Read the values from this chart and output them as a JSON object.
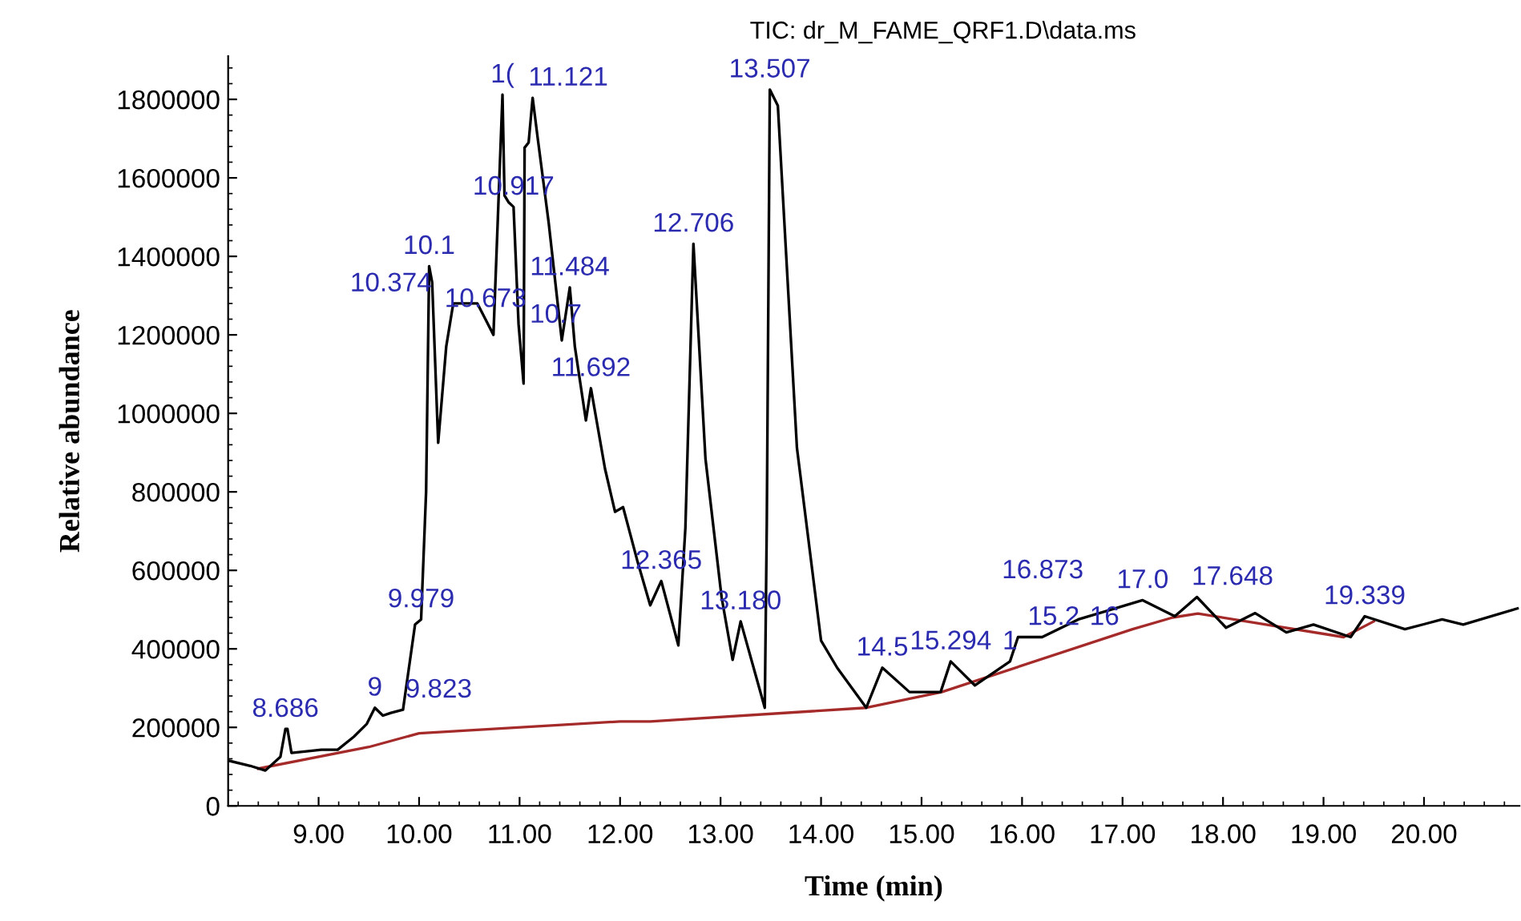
{
  "chart_data": {
    "type": "line",
    "title": "TIC: dr_M_FAME_QRF1.D\\data.ms",
    "xlabel": "Time (min)",
    "ylabel": "Relative abundance",
    "xlim": [
      8.1,
      20.95
    ],
    "ylim": [
      0,
      1910000
    ],
    "xticks": [
      {
        "value": 9,
        "label": "9.00"
      },
      {
        "value": 10,
        "label": "10.00"
      },
      {
        "value": 11,
        "label": "11.00"
      },
      {
        "value": 12,
        "label": "12.00"
      },
      {
        "value": 13,
        "label": "13.00"
      },
      {
        "value": 14,
        "label": "14.00"
      },
      {
        "value": 15,
        "label": "15.00"
      },
      {
        "value": 16,
        "label": "16.00"
      },
      {
        "value": 17,
        "label": "17.00"
      },
      {
        "value": 18,
        "label": "18.00"
      },
      {
        "value": 19,
        "label": "19.00"
      },
      {
        "value": 20,
        "label": "20.00"
      }
    ],
    "yticks": [
      0,
      200000,
      400000,
      600000,
      800000,
      1000000,
      1200000,
      1400000,
      1600000,
      1800000
    ],
    "grid": false,
    "legend": false,
    "marker": "none",
    "line_style": "solid",
    "series": [
      {
        "color": "#000000",
        "x": [
          8.11,
          8.32,
          8.47,
          8.62,
          8.67,
          8.69,
          8.73,
          9.03,
          9.19,
          9.35,
          9.48,
          9.56,
          9.64,
          9.72,
          9.84,
          9.96,
          10.02,
          10.07,
          10.1,
          10.13,
          10.19,
          10.27,
          10.34,
          10.58,
          10.66,
          10.74,
          10.83,
          10.85,
          10.89,
          10.94,
          10.99,
          11.04,
          11.05,
          11.09,
          11.13,
          11.18,
          11.29,
          11.42,
          11.5,
          11.55,
          11.66,
          11.71,
          11.85,
          11.95,
          12.03,
          12.17,
          12.3,
          12.41,
          12.58,
          12.65,
          12.73,
          12.85,
          13.01,
          13.12,
          13.2,
          13.44,
          13.46,
          13.49,
          13.57,
          13.76,
          14.0,
          14.16,
          14.45,
          14.61,
          14.88,
          15.19,
          15.29,
          15.53,
          15.88,
          15.96,
          16.2,
          16.56,
          17.2,
          17.52,
          17.74,
          18.03,
          18.32,
          18.63,
          18.9,
          19.27,
          19.41,
          19.81,
          20.18,
          20.39,
          20.93
        ],
        "values": [
          115000,
          102000,
          90000,
          125000,
          196000,
          196000,
          135000,
          143000,
          143000,
          176000,
          209000,
          250000,
          230000,
          237000,
          245000,
          462000,
          475000,
          802000,
          1375000,
          1334000,
          925000,
          1170000,
          1280000,
          1280000,
          1240000,
          1200000,
          1812000,
          1555000,
          1538000,
          1526000,
          1227000,
          1076000,
          1677000,
          1690000,
          1804000,
          1702000,
          1485000,
          1186000,
          1321000,
          1170000,
          982000,
          1064000,
          859000,
          749000,
          761000,
          626000,
          511000,
          573000,
          409000,
          708000,
          1432000,
          884000,
          532000,
          372000,
          470000,
          250000,
          720000,
          1825000,
          1784000,
          912000,
          421000,
          352000,
          250000,
          352000,
          290000,
          290000,
          368000,
          307000,
          368000,
          430000,
          430000,
          475000,
          524000,
          483000,
          532000,
          454000,
          491000,
          442000,
          462000,
          430000,
          483000,
          450000,
          475000,
          462000,
          503000
        ]
      },
      {
        "color": "#a52a2a",
        "x": [
          8.4,
          9.5,
          10.0,
          12.0,
          12.3,
          14.45,
          15.2,
          17.1,
          17.5,
          17.75,
          19.2,
          19.5
        ],
        "values": [
          95000,
          150000,
          185000,
          215000,
          215000,
          250000,
          290000,
          450000,
          480000,
          490000,
          430000,
          470000
        ]
      }
    ],
    "annotations": [
      {
        "text": "8.686",
        "x": 8.67,
        "y": 196000
      },
      {
        "text": "9",
        "x": 9.56,
        "y": 250000
      },
      {
        "text": "9.823",
        "x": 9.84,
        "y": 245000
      },
      {
        "text": "9.979",
        "x": 10.02,
        "y": 475000
      },
      {
        "text": "10.1",
        "x": 10.1,
        "y": 1375000
      },
      {
        "text": "10.673",
        "x": 10.66,
        "y": 1240000
      },
      {
        "text": "10.374",
        "x": 10.34,
        "y": 1280000
      },
      {
        "text": "10.7",
        "x": 10.74,
        "y": 1200000
      },
      {
        "text": "11.484",
        "x": 11.5,
        "y": 1321000
      },
      {
        "text": "10.917",
        "x": 10.94,
        "y": 1526000
      },
      {
        "text": "1(",
        "x": 10.83,
        "y": 1812000
      },
      {
        "text": "11.121",
        "x": 11.13,
        "y": 1804000
      },
      {
        "text": "11.692",
        "x": 11.71,
        "y": 1064000
      },
      {
        "text": "12.365",
        "x": 12.41,
        "y": 573000
      },
      {
        "text": "12.706",
        "x": 12.73,
        "y": 1432000
      },
      {
        "text": "13.180",
        "x": 13.2,
        "y": 470000
      },
      {
        "text": "13.507",
        "x": 13.49,
        "y": 1825000
      },
      {
        "text": "14.5",
        "x": 14.61,
        "y": 352000
      },
      {
        "text": "15.294",
        "x": 15.29,
        "y": 368000
      },
      {
        "text": "1",
        "x": 15.88,
        "y": 368000
      },
      {
        "text": "15.2",
        "x": 15.96,
        "y": 430000
      },
      {
        "text": "16",
        "x": 16.2,
        "y": 430000
      },
      {
        "text": "17.0",
        "x": 17.2,
        "y": 524000
      },
      {
        "text": "16.873",
        "x": 16.56,
        "y": 475000
      },
      {
        "text": "17.648",
        "x": 17.74,
        "y": 532000
      },
      {
        "text": "19.339",
        "x": 19.41,
        "y": 483000
      }
    ]
  }
}
